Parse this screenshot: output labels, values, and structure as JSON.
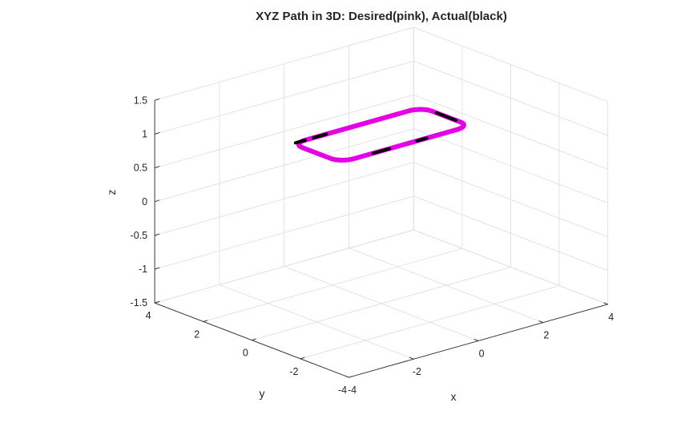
{
  "chart_data": {
    "type": "line3d",
    "title": "XYZ Path in 3D: Desired(pink), Actual(black)",
    "xlabel": "x",
    "ylabel": "y",
    "zlabel": "z",
    "xlim": [
      -4,
      4
    ],
    "ylim": [
      -4,
      4
    ],
    "zlim": [
      -1.5,
      1.5
    ],
    "xticks": [
      -4,
      -2,
      0,
      2,
      4
    ],
    "yticks": [
      -4,
      -2,
      0,
      2,
      4
    ],
    "zticks": [
      -1.5,
      -1,
      -0.5,
      0,
      0.5,
      1,
      1.5
    ],
    "grid": true,
    "colors": {
      "desired": "#e600e6",
      "actual": "#000000"
    },
    "series": [
      {
        "name": "Desired",
        "style": "rounded-rectangle",
        "x_range": [
          -2,
          2
        ],
        "y_range": [
          -1,
          1
        ],
        "corner_radius": 0.4,
        "z": 1
      },
      {
        "name": "Actual",
        "segments": [
          {
            "x": [
              -1.0,
              -0.5
            ],
            "y": [
              -1.0,
              -1.0
            ],
            "z": 1
          },
          {
            "x": [
              0.35,
              0.65
            ],
            "y": [
              -1.0,
              -1.0
            ],
            "z": 1
          },
          {
            "x": [
              -1.35,
              -0.95
            ],
            "y": [
              1.0,
              1.0
            ],
            "z": 1
          },
          {
            "x": [
              2.0,
              2.0
            ],
            "y": [
              -0.4,
              0.4
            ],
            "z": 1
          },
          {
            "x": [
              -1.9,
              -1.6
            ],
            "y": [
              1.0,
              1.0
            ],
            "z": 1
          }
        ]
      }
    ]
  }
}
